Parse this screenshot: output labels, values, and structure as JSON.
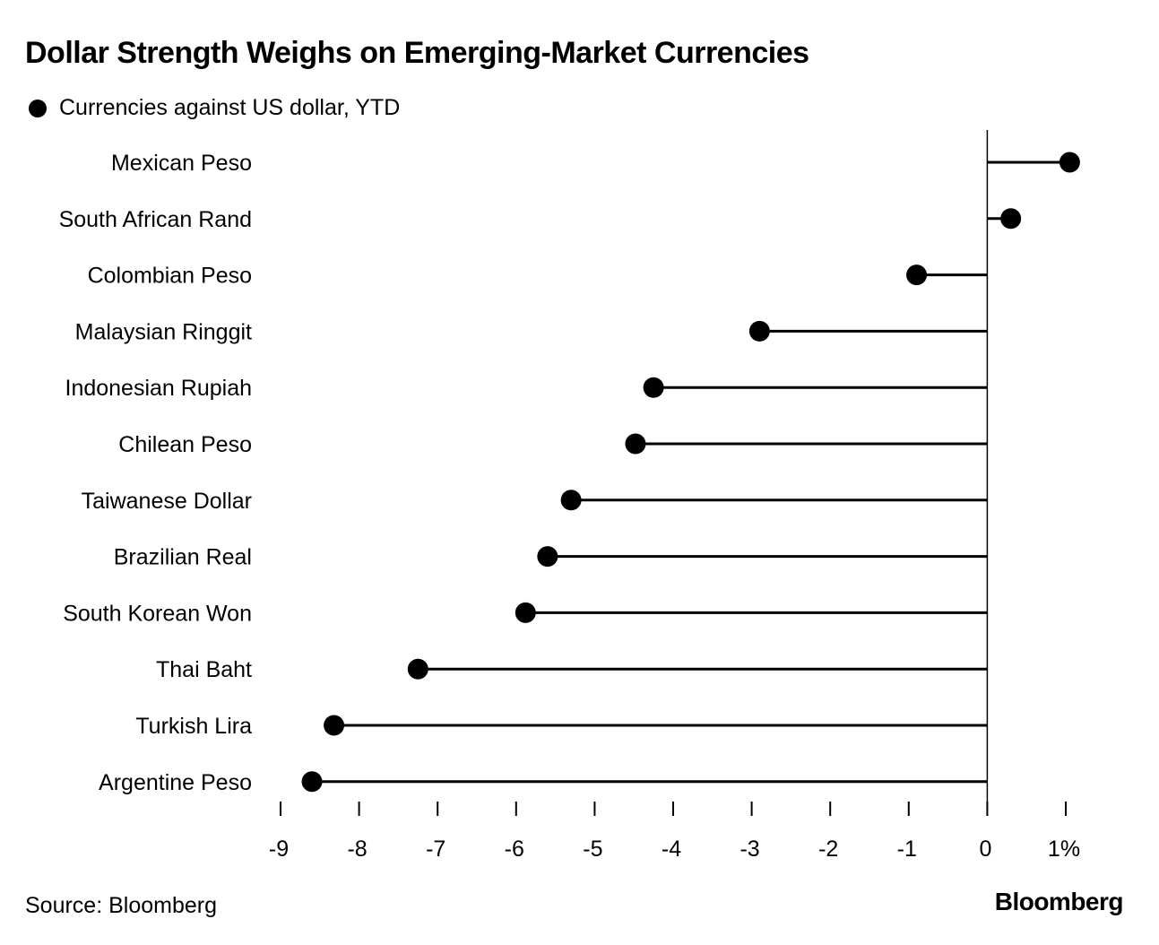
{
  "title": "Dollar Strength Weighs on Emerging-Market Currencies",
  "legend_label": "Currencies against US dollar, YTD",
  "source": "Source: Bloomberg",
  "logo": "Bloomberg",
  "chart_data": {
    "type": "lollipop",
    "title": "Dollar Strength Weighs on Emerging-Market Currencies",
    "series": [
      {
        "name": "Currencies against US dollar, YTD",
        "color": "#000000"
      }
    ],
    "categories": [
      "Mexican Peso",
      "South African Rand",
      "Colombian Peso",
      "Malaysian Ringgit",
      "Indonesian Rupiah",
      "Chilean Peso",
      "Taiwanese Dollar",
      "Brazilian Real",
      "South Korean Won",
      "Thai Baht",
      "Turkish Lira",
      "Argentine Peso"
    ],
    "values": [
      1.05,
      0.3,
      -0.9,
      -2.9,
      -4.25,
      -4.48,
      -5.3,
      -5.6,
      -5.88,
      -7.25,
      -8.32,
      -8.6
    ],
    "xlim": [
      -9,
      1
    ],
    "xticks": [
      -9,
      -8,
      -7,
      -6,
      -5,
      -4,
      -3,
      -2,
      -1,
      0,
      1
    ],
    "xtick_labels": [
      "-9",
      "-8",
      "-7",
      "-6",
      "-5",
      "-4",
      "-3",
      "-2",
      "-1",
      "0",
      "1%"
    ],
    "xlabel": "",
    "ylabel": "",
    "grid": false
  }
}
